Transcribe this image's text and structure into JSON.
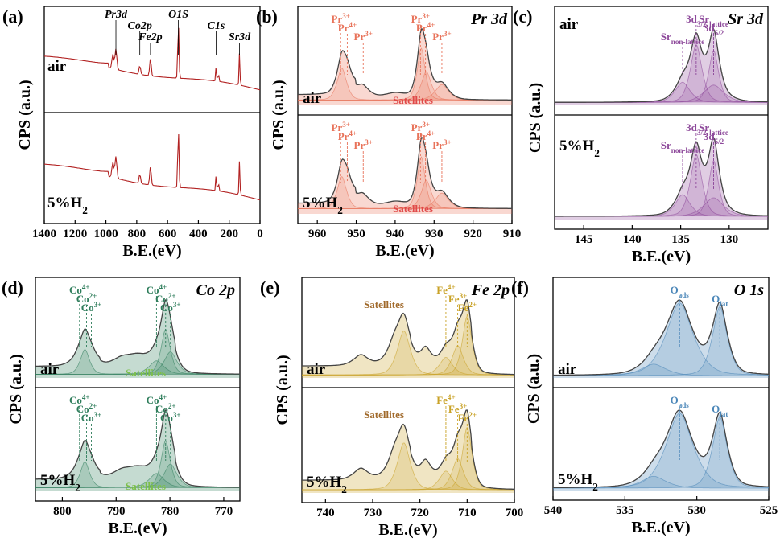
{
  "chart_data": [
    {
      "panel": "(a)",
      "type": "line",
      "subtype": "XPS survey spectra",
      "xlabel": "B.E.(eV)",
      "ylabel": "CPS (a.u.)",
      "xlim": [
        1400,
        0
      ],
      "xticks": [
        1400,
        1200,
        1000,
        800,
        600,
        400,
        200,
        0
      ],
      "color": "#b22222",
      "series": [
        {
          "name": "air"
        },
        {
          "name": "5%H2"
        }
      ],
      "peak_labels": [
        {
          "text": "Pr3d",
          "x": 935
        },
        {
          "text": "Co2p",
          "x": 780
        },
        {
          "text": "Fe2p",
          "x": 711
        },
        {
          "text": "O1S",
          "x": 530
        },
        {
          "text": "C1s",
          "x": 285
        },
        {
          "text": "Sr3d",
          "x": 133
        }
      ]
    },
    {
      "panel": "(b)",
      "type": "line",
      "subtype": "XPS fitted spectra",
      "core_level": "Pr 3d",
      "xlabel": "B.E.(eV)",
      "ylabel": "CPS (a.u.)",
      "xlim": [
        965,
        910
      ],
      "xticks": [
        960,
        950,
        940,
        930,
        920,
        910
      ],
      "color": "#e8735a",
      "series": [
        {
          "name": "air"
        },
        {
          "name": "5%H2"
        }
      ],
      "components": [
        {
          "label": "Pr3+",
          "position": 954.0
        },
        {
          "label": "Pr4+",
          "position": 952.3
        },
        {
          "label": "Pr3+",
          "position": 948.2
        },
        {
          "label": "Pr3+",
          "position": 933.5
        },
        {
          "label": "Pr4+",
          "position": 932.2
        },
        {
          "label": "Pr3+",
          "position": 928.0
        }
      ],
      "satellites_label": "Satellites"
    },
    {
      "panel": "(c)",
      "type": "line",
      "subtype": "XPS fitted spectra",
      "core_level": "Sr 3d",
      "xlabel": "B.E.(eV)",
      "ylabel": "CPS (a.u.)",
      "xlim": [
        148,
        126
      ],
      "xticks": [
        145,
        140,
        135,
        130
      ],
      "color": "#8e4a9b",
      "series": [
        {
          "name": "air"
        },
        {
          "name": "5%H2"
        }
      ],
      "components": [
        {
          "label": "3d3/2",
          "position": 133.4
        },
        {
          "label": "3d5/2",
          "position": 131.6
        },
        {
          "label": "Sr non-lattice",
          "position": 134.8
        },
        {
          "label": "Sr lattice",
          "position": 131.6
        }
      ]
    },
    {
      "panel": "(d)",
      "type": "line",
      "subtype": "XPS fitted spectra",
      "core_level": "Co 2p",
      "xlabel": "B.E.(eV)",
      "ylabel": "CPS (a.u.)",
      "xlim": [
        805,
        767
      ],
      "xticks": [
        800,
        790,
        780,
        770
      ],
      "color": "#2e7d5b",
      "series": [
        {
          "name": "air"
        },
        {
          "name": "5%H2"
        }
      ],
      "components": [
        {
          "label": "Co4+",
          "position": 796.8
        },
        {
          "label": "Co2+",
          "position": 795.5
        },
        {
          "label": "Co3+",
          "position": 794.6
        },
        {
          "label": "Co4+",
          "position": 782.5
        },
        {
          "label": "Co2+",
          "position": 780.8
        },
        {
          "label": "Co3+",
          "position": 779.9
        }
      ],
      "satellites_label": "Satellites"
    },
    {
      "panel": "(e)",
      "type": "line",
      "subtype": "XPS fitted spectra",
      "core_level": "Fe 2p",
      "xlabel": "B.E.(eV)",
      "ylabel": "CPS (a.u.)",
      "xlim": [
        745,
        700
      ],
      "xticks": [
        740,
        730,
        720,
        710,
        700
      ],
      "color": "#c9a227",
      "series": [
        {
          "name": "air"
        },
        {
          "name": "5%H2"
        }
      ],
      "components": [
        {
          "label": "Fe4+",
          "position": 714.5
        },
        {
          "label": "Fe3+",
          "position": 712.0
        },
        {
          "label": "Fe2+",
          "position": 710.0
        }
      ],
      "satellites_label": "Satellites"
    },
    {
      "panel": "(f)",
      "type": "line",
      "subtype": "XPS fitted spectra",
      "core_level": "O 1s",
      "xlabel": "B.E.(eV)",
      "ylabel": "CPS (a.u.)",
      "xlim": [
        540,
        525
      ],
      "xticks": [
        540,
        535,
        530,
        525
      ],
      "color": "#4a86b8",
      "series": [
        {
          "name": "air"
        },
        {
          "name": "5%H2"
        }
      ],
      "components": [
        {
          "label": "Oads",
          "position": 531.2
        },
        {
          "label": "Olat",
          "position": 528.4
        }
      ]
    }
  ]
}
